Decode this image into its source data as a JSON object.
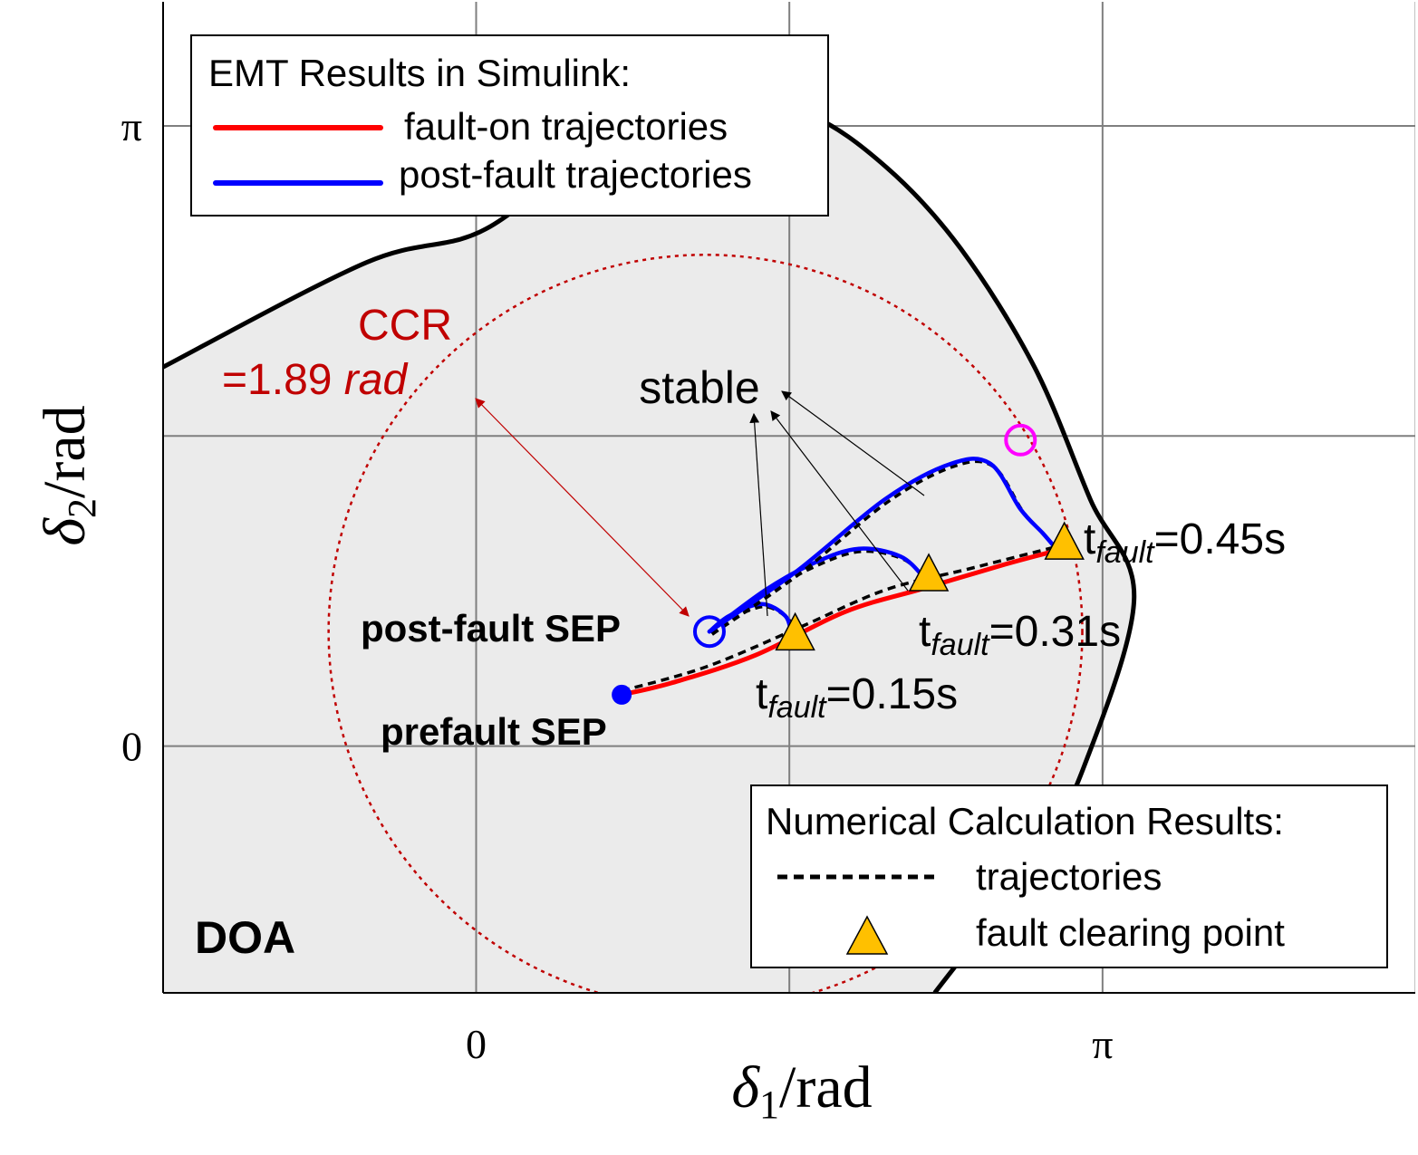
{
  "chart_data": {
    "type": "line",
    "title": "",
    "xlabel": "δ1/rad",
    "ylabel": "δ2/rad",
    "xlim": [
      -1.57,
      4.71
    ],
    "ylim": [
      -1.25,
      3.77
    ],
    "grid": true,
    "x_ticks": [
      {
        "value": 0,
        "label": "0"
      },
      {
        "value": 3.14159,
        "label": "π"
      }
    ],
    "y_ticks": [
      {
        "value": 0,
        "label": "0"
      },
      {
        "value": 3.14159,
        "label": "π"
      }
    ],
    "domain_of_attraction": {
      "label": "DOA",
      "color": "#ebebeb",
      "boundary_color": "#000000",
      "upper_branch": [
        [
          -1.57,
          1.92
        ],
        [
          -0.55,
          2.45
        ],
        [
          0.05,
          2.62
        ],
        [
          0.65,
          3.1
        ],
        [
          1.1,
          3.35
        ],
        [
          1.65,
          3.21
        ],
        [
          2.06,
          2.93
        ],
        [
          2.43,
          2.52
        ],
        [
          2.8,
          1.92
        ],
        [
          3.08,
          1.25
        ],
        [
          3.3,
          0.75
        ],
        [
          3.05,
          -0.1
        ],
        [
          2.8,
          -0.58
        ],
        [
          2.3,
          -1.25
        ]
      ],
      "lower_branch": [
        [
          -1.57,
          -1.25
        ],
        [
          2.3,
          -1.25
        ]
      ]
    },
    "ccr": {
      "label_line1": "CCR",
      "label_line2_prefix": "=1.89 ",
      "label_line2_unit": "rad",
      "radius_rad": 1.89,
      "center": [
        1.15,
        0.58
      ],
      "color": "#c00000"
    },
    "series": [
      {
        "name": "fault-on trajectories",
        "color": "#ff0000",
        "points": [
          [
            0.73,
            0.26
          ],
          [
            0.98,
            0.32
          ],
          [
            1.4,
            0.46
          ],
          [
            1.85,
            0.68
          ],
          [
            2.25,
            0.8
          ],
          [
            2.65,
            0.92
          ],
          [
            2.91,
            0.99
          ]
        ]
      },
      {
        "name": "post-fault trajectories",
        "color": "#0000ff",
        "curves": [
          [
            [
              1.17,
              0.58
            ],
            [
              1.27,
              0.66
            ],
            [
              1.43,
              0.72
            ],
            [
              1.55,
              0.66
            ],
            [
              1.58,
              0.57
            ]
          ],
          [
            [
              1.17,
              0.58
            ],
            [
              1.45,
              0.79
            ],
            [
              1.7,
              0.93
            ],
            [
              1.92,
              1.0
            ],
            [
              2.13,
              0.96
            ],
            [
              2.25,
              0.85
            ]
          ],
          [
            [
              1.17,
              0.58
            ],
            [
              1.6,
              0.88
            ],
            [
              2.05,
              1.25
            ],
            [
              2.38,
              1.43
            ],
            [
              2.58,
              1.43
            ],
            [
              2.73,
              1.2
            ],
            [
              2.84,
              1.08
            ],
            [
              2.9,
              1.01
            ]
          ]
        ]
      }
    ],
    "numerical_trajectories": {
      "name": "trajectories",
      "color": "#000000",
      "points": [
        [
          0.73,
          0.28
        ],
        [
          1.15,
          0.4
        ],
        [
          1.62,
          0.6
        ],
        [
          2.05,
          0.79
        ],
        [
          2.48,
          0.9
        ],
        [
          2.95,
          1.02
        ]
      ]
    },
    "fault_clearing_points": {
      "name": "fault clearing point",
      "color": "#ffc000",
      "points": [
        {
          "x": 1.6,
          "y": 0.57,
          "label_t": "t",
          "label_sub": "fault",
          "label_val": "=0.15s"
        },
        {
          "x": 2.27,
          "y": 0.87,
          "label_t": "t",
          "label_sub": "fault",
          "label_val": "=0.31s"
        },
        {
          "x": 2.95,
          "y": 1.03,
          "label_t": "t",
          "label_sub": "fault",
          "label_val": "=0.45s"
        }
      ]
    },
    "special_points": [
      {
        "name": "prefault SEP",
        "x": 0.73,
        "y": 0.26,
        "color": "#0000ff",
        "filled": true
      },
      {
        "name": "post-fault SEP",
        "x": 1.17,
        "y": 0.58,
        "color": "#0000ff",
        "filled": false
      },
      {
        "name": "",
        "x": 2.73,
        "y": 1.55,
        "color": "#ff00ff",
        "filled": false
      }
    ],
    "annotations": {
      "stable": "stable"
    },
    "legend_emt": {
      "title": "EMT Results in Simulink:",
      "placement": "top-left",
      "entries": [
        "fault-on trajectories",
        "post-fault trajectories"
      ]
    },
    "legend_numerical": {
      "title": "Numerical Calculation Results:",
      "placement": "bottom-right",
      "entries": [
        "trajectories",
        "fault clearing point"
      ]
    }
  }
}
